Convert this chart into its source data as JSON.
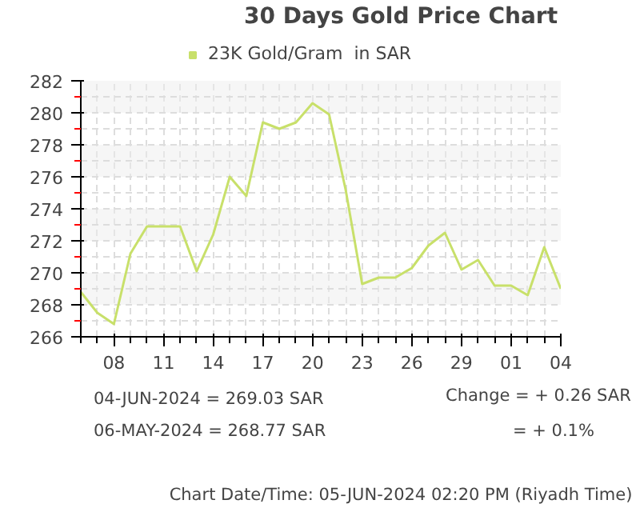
{
  "chart_data": {
    "type": "line",
    "title": "30 Days Gold Price Chart",
    "x": [
      "2024-05-06",
      "2024-05-07",
      "2024-05-08",
      "2024-05-09",
      "2024-05-10",
      "2024-05-11",
      "2024-05-12",
      "2024-05-13",
      "2024-05-14",
      "2024-05-15",
      "2024-05-16",
      "2024-05-17",
      "2024-05-18",
      "2024-05-19",
      "2024-05-20",
      "2024-05-21",
      "2024-05-22",
      "2024-05-23",
      "2024-05-24",
      "2024-05-25",
      "2024-05-26",
      "2024-05-27",
      "2024-05-28",
      "2024-05-29",
      "2024-05-30",
      "2024-05-31",
      "2024-06-01",
      "2024-06-02",
      "2024-06-03",
      "2024-06-04"
    ],
    "series": [
      {
        "name": "23K Gold/Gram  in SAR",
        "color": "#c8e06a",
        "values": [
          268.8,
          267.5,
          266.8,
          271.2,
          272.9,
          272.9,
          272.9,
          270.1,
          272.4,
          276.0,
          274.8,
          279.4,
          279.0,
          279.4,
          280.6,
          279.9,
          275.2,
          269.3,
          269.7,
          269.7,
          270.3,
          271.7,
          272.5,
          270.2,
          270.8,
          269.2,
          269.2,
          268.6,
          271.6,
          269.0
        ]
      }
    ],
    "xlim": [
      "2024-05-06",
      "2024-06-04"
    ],
    "xticks": [
      {
        "value": "2024-05-08",
        "label": "08"
      },
      {
        "value": "2024-05-11",
        "label": "11"
      },
      {
        "value": "2024-05-14",
        "label": "14"
      },
      {
        "value": "2024-05-17",
        "label": "17"
      },
      {
        "value": "2024-05-20",
        "label": "20"
      },
      {
        "value": "2024-05-23",
        "label": "23"
      },
      {
        "value": "2024-05-26",
        "label": "26"
      },
      {
        "value": "2024-05-29",
        "label": "29"
      },
      {
        "value": "2024-06-01",
        "label": "01"
      },
      {
        "value": "2024-06-04",
        "label": "04"
      }
    ],
    "ylim": [
      266,
      282
    ],
    "yticks": [
      266,
      268,
      270,
      272,
      274,
      276,
      278,
      280,
      282
    ],
    "grid": true,
    "legend": "top",
    "marker": "none",
    "line_style": "solid",
    "annotations": [
      "04-JUN-2024 = 269.03 SAR",
      "06-MAY-2024 = 268.77 SAR",
      "Change   = + 0.26 SAR",
      "= + 0.1%",
      "Chart Date/Time: 05-JUN-2024 02:20 PM (Riyadh Time)"
    ]
  }
}
